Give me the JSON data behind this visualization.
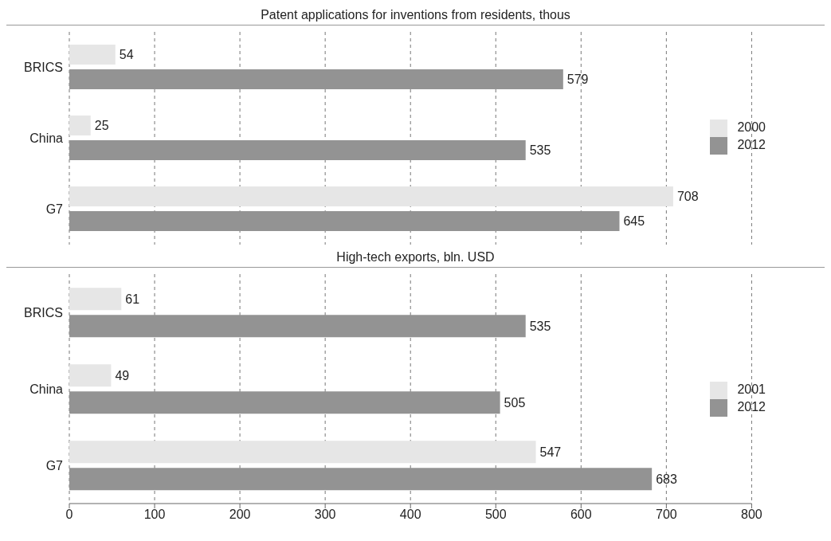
{
  "chart_data": [
    {
      "type": "bar",
      "orientation": "horizontal",
      "title": "Patent applications for inventions from residents, thous",
      "categories": [
        "BRICS",
        "China",
        "G7"
      ],
      "series": [
        {
          "name": "2000",
          "color": "#e6e6e6",
          "values": [
            54,
            25,
            708
          ]
        },
        {
          "name": "2012",
          "color": "#939393",
          "values": [
            579,
            535,
            645
          ]
        }
      ],
      "xlim": [
        0,
        800
      ],
      "xticks": [
        0,
        100,
        200,
        300,
        400,
        500,
        600,
        700,
        800
      ],
      "tick_labels": "y",
      "grid": "x",
      "legend": "right",
      "data_labels": true
    },
    {
      "type": "bar",
      "orientation": "horizontal",
      "title": "High-tech exports, bln. USD",
      "categories": [
        "BRICS",
        "China",
        "G7"
      ],
      "series": [
        {
          "name": "2001",
          "color": "#e6e6e6",
          "values": [
            61,
            49,
            547
          ]
        },
        {
          "name": "2012",
          "color": "#939393",
          "values": [
            535,
            505,
            683
          ]
        }
      ],
      "xlim": [
        0,
        800
      ],
      "xticks": [
        0,
        100,
        200,
        300,
        400,
        500,
        600,
        700,
        800
      ],
      "grid": "x",
      "legend": "right",
      "data_labels": true
    }
  ]
}
